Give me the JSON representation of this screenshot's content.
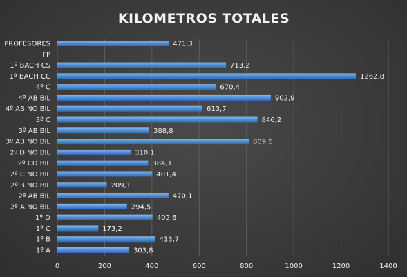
{
  "chart_data": {
    "type": "bar",
    "orientation": "horizontal",
    "title": "KILOMETROS TOTALES",
    "categories": [
      "PROFESORES",
      "FP",
      "1º BACH CS",
      "1º BACH CC",
      "4º C",
      "4º AB BIL",
      "4º AB NO BIL",
      "3º C",
      "3º AB BIL",
      "3º AB NO BIL",
      "2º D NO BIL",
      "2º CD BIL",
      "2º C NO BIL",
      "2º B NO BIL",
      "2º AB BIL",
      "2º A NO BIL",
      "1º D",
      "1º C",
      "1º B",
      "1º A"
    ],
    "values": [
      471.3,
      null,
      713.2,
      1262.8,
      670.4,
      902.9,
      613.7,
      846.2,
      388.8,
      809.6,
      310.1,
      384.1,
      401.4,
      209.1,
      470.1,
      294.5,
      402.6,
      173.2,
      413.7,
      303.8
    ],
    "value_labels": [
      "471,3",
      "",
      "713,2",
      "1262,8",
      "670,4",
      "902,9",
      "613,7",
      "846,2",
      "388,8",
      "809,6",
      "310,1",
      "384,1",
      "401,4",
      "209,1",
      "470,1",
      "294,5",
      "402,6",
      "173,2",
      "413,7",
      "303,8"
    ],
    "xticks": [
      0,
      200,
      400,
      600,
      800,
      1000,
      1200,
      1400
    ],
    "xlim": [
      0,
      1400
    ],
    "xlabel": "",
    "ylabel": "",
    "grid": true,
    "legend": "none",
    "colors": {
      "bar": "#4f8fd6",
      "bar_light": "#86b6ea",
      "bar_dark": "#2f6cb3",
      "grid": "#5e5e5e",
      "text": "#f0f0f0"
    }
  }
}
